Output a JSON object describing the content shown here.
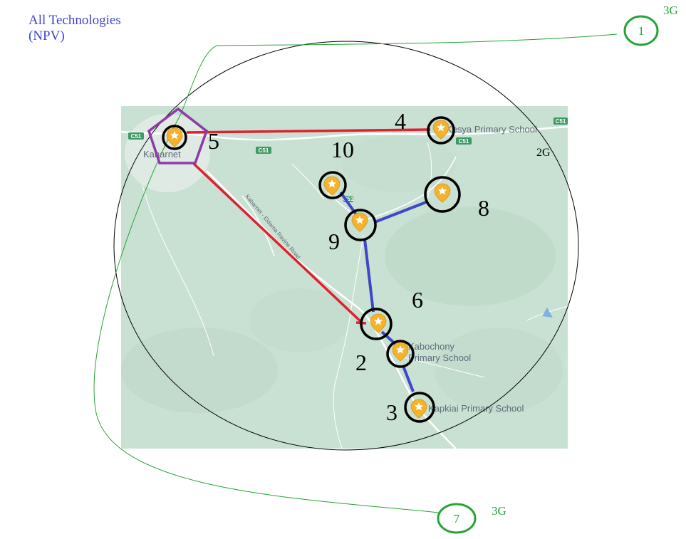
{
  "title": {
    "line1": "All Technologies",
    "line2": "(NPV)"
  },
  "colors": {
    "title": "#3f47c9",
    "red_link": "#e0202f",
    "blue_link": "#3f47c9",
    "green": "#27a336",
    "pentagon": "#8e3aa8",
    "map_bg": "#c9e1d3",
    "marker": "#f4b32b"
  },
  "node_labels": {
    "n2": "2",
    "n3": "3",
    "n4": "4",
    "n5": "5",
    "n6": "6",
    "n8": "8",
    "n9": "9",
    "n10": "10"
  },
  "external_nodes": {
    "n1": "1",
    "n7": "7"
  },
  "technology_labels": {
    "top": "3G",
    "bottom": "3G",
    "coverage": "2G"
  },
  "map_labels": {
    "kabarnet": "Kabarnet",
    "kesya": "Kesya Primary School",
    "kabochony_1": "Kabochony",
    "kabochony_2": "Primary School",
    "kapkiai": "Kapkiai Primary School",
    "road": "Kabarnet - Eldama Ravine Road"
  },
  "road_badges": {
    "a": "C51",
    "b": "C51",
    "c": "C51",
    "d": "C51",
    "e": "C51"
  },
  "icons": {
    "marker": "map-pin-icon",
    "hub": "pentagon-hub-icon",
    "lake": "water-body-icon"
  }
}
